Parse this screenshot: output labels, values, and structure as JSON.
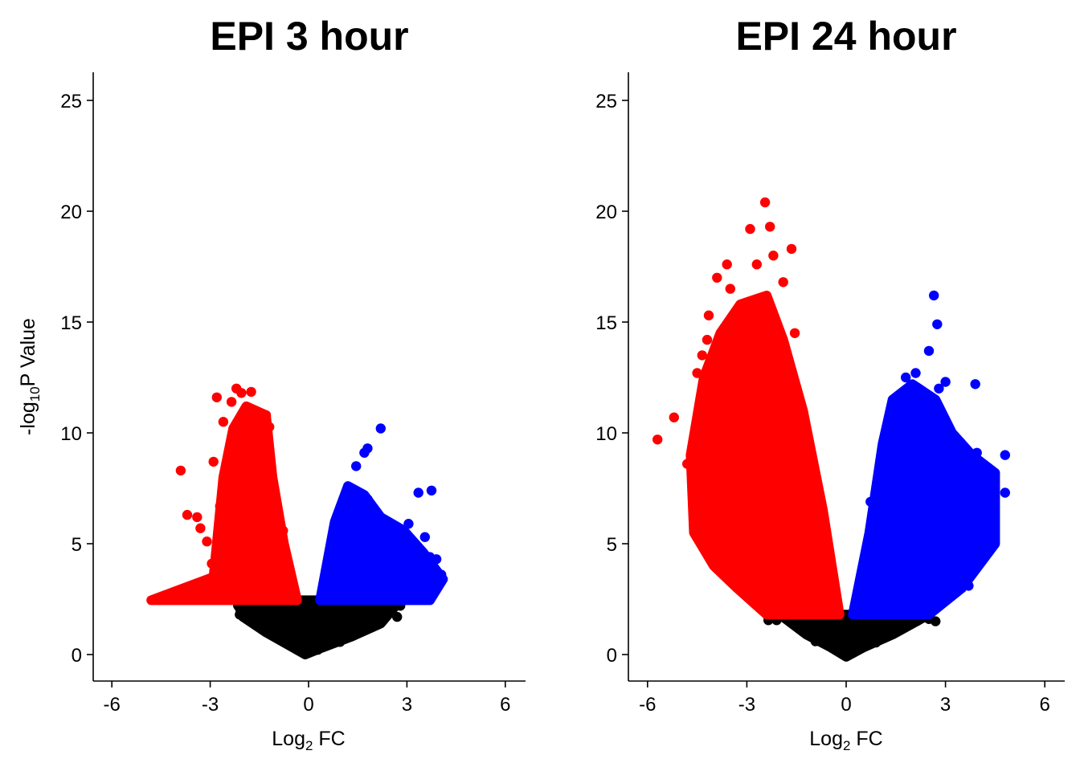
{
  "colors": {
    "down": "#ff0000",
    "up": "#0000ff",
    "nonsignificant": "#000000",
    "axis": "#000000",
    "background": "#ffffff"
  },
  "chart_data": [
    {
      "type": "scatter",
      "title": "EPI 3 hour",
      "xlabel": {
        "base": "Log",
        "sub": "2",
        "rest": " FC"
      },
      "ylabel": {
        "base": "-log",
        "sub": "10",
        "rest": "P Value"
      },
      "xlim": [
        -7,
        6.5
      ],
      "ylim": [
        -1.2,
        26.3
      ],
      "xticks": [
        -6,
        -3,
        0,
        3,
        6
      ],
      "xtick_labels": [
        "-6",
        "-3",
        "0",
        "3",
        "6"
      ],
      "yticks": [
        0,
        5,
        10,
        15,
        20,
        25
      ],
      "ytick_labels": [
        "0",
        "5",
        "10",
        "15",
        "20",
        "25"
      ],
      "grid": false,
      "legend": "none",
      "significance_threshold": 2.45,
      "series": [
        {
          "role": "down",
          "envelope": [
            [
              -4.8,
              2.45
            ],
            [
              -2.9,
              3.5
            ],
            [
              -2.6,
              8.0
            ],
            [
              -2.3,
              10.2
            ],
            [
              -1.9,
              11.2
            ],
            [
              -1.3,
              10.8
            ],
            [
              -1.1,
              8.0
            ],
            [
              -0.75,
              5.0
            ],
            [
              -0.35,
              2.45
            ]
          ],
          "outliers": [
            [
              -3.9,
              8.3
            ],
            [
              -2.9,
              8.7
            ],
            [
              -2.8,
              11.6
            ],
            [
              -2.6,
              10.5
            ],
            [
              -2.35,
              11.4
            ],
            [
              -2.2,
              12.0
            ],
            [
              -2.05,
              11.8
            ],
            [
              -1.75,
              11.85
            ],
            [
              -1.3,
              10.8
            ],
            [
              -3.7,
              6.3
            ],
            [
              -3.4,
              6.2
            ],
            [
              -3.3,
              5.7
            ],
            [
              -3.1,
              5.1
            ],
            [
              -2.7,
              6.7
            ],
            [
              -2.95,
              4.1
            ],
            [
              -2.75,
              3.6
            ]
          ]
        },
        {
          "role": "up",
          "envelope": [
            [
              0.35,
              2.45
            ],
            [
              0.8,
              6.0
            ],
            [
              1.2,
              7.6
            ],
            [
              1.7,
              7.2
            ],
            [
              2.2,
              6.2
            ],
            [
              2.9,
              5.6
            ],
            [
              3.5,
              4.6
            ],
            [
              4.1,
              3.4
            ],
            [
              3.7,
              2.45
            ]
          ],
          "outliers": [
            [
              1.45,
              8.5
            ],
            [
              1.7,
              9.1
            ],
            [
              1.8,
              9.3
            ],
            [
              2.2,
              10.2
            ],
            [
              3.35,
              7.3
            ],
            [
              3.75,
              7.4
            ],
            [
              3.05,
              5.9
            ],
            [
              3.55,
              5.3
            ],
            [
              3.7,
              4.4
            ],
            [
              3.9,
              4.3
            ],
            [
              4.05,
              3.6
            ],
            [
              3.2,
              4.2
            ],
            [
              3.8,
              2.8
            ],
            [
              2.75,
              5.2
            ]
          ]
        },
        {
          "role": "nonsignificant",
          "envelope": [
            [
              -2.2,
              2.45
            ],
            [
              -2.0,
              1.7
            ],
            [
              -1.3,
              1.0
            ],
            [
              -0.7,
              0.5
            ],
            [
              -0.1,
              0.0
            ],
            [
              0.4,
              0.3
            ],
            [
              1.3,
              0.8
            ],
            [
              2.2,
              1.4
            ],
            [
              2.8,
              2.45
            ]
          ],
          "outliers": [
            [
              -2.15,
              2.2
            ],
            [
              -2.1,
              1.8
            ],
            [
              2.7,
              1.7
            ],
            [
              2.8,
              2.2
            ]
          ]
        }
      ]
    },
    {
      "type": "scatter",
      "title": "EPI 24 hour",
      "xlabel": {
        "base": "Log",
        "sub": "2",
        "rest": " FC"
      },
      "ylabel": {
        "base": "",
        "sub": "",
        "rest": ""
      },
      "xlim": [
        -6.5,
        6.6
      ],
      "ylim": [
        -1.2,
        26.3
      ],
      "xticks": [
        -6,
        -3,
        0,
        3,
        6
      ],
      "xtick_labels": [
        "-6",
        "-3",
        "0",
        "3",
        "6"
      ],
      "yticks": [
        0,
        5,
        10,
        15,
        20,
        25
      ],
      "ytick_labels": [
        "0",
        "5",
        "10",
        "15",
        "20",
        "25"
      ],
      "grid": false,
      "legend": "none",
      "significance_threshold": 1.8,
      "series": [
        {
          "role": "down",
          "envelope": [
            [
              -4.6,
              5.5
            ],
            [
              -4.7,
              9.0
            ],
            [
              -4.3,
              12.5
            ],
            [
              -3.8,
              14.5
            ],
            [
              -3.2,
              15.8
            ],
            [
              -2.4,
              16.2
            ],
            [
              -1.9,
              14.2
            ],
            [
              -1.3,
              11.0
            ],
            [
              -0.7,
              6.5
            ],
            [
              -0.2,
              1.8
            ],
            [
              -2.4,
              1.8
            ],
            [
              -3.3,
              3.0
            ],
            [
              -4.0,
              4.0
            ]
          ],
          "outliers": [
            [
              -5.7,
              9.7
            ],
            [
              -5.2,
              10.7
            ],
            [
              -4.8,
              8.6
            ],
            [
              -4.6,
              8.7
            ],
            [
              -4.5,
              12.7
            ],
            [
              -4.2,
              12.8
            ],
            [
              -4.35,
              13.5
            ],
            [
              -4.2,
              14.2
            ],
            [
              -4.15,
              15.3
            ],
            [
              -3.9,
              17.0
            ],
            [
              -3.6,
              17.6
            ],
            [
              -3.5,
              16.5
            ],
            [
              -2.9,
              19.2
            ],
            [
              -2.7,
              17.6
            ],
            [
              -2.45,
              20.4
            ],
            [
              -2.3,
              19.3
            ],
            [
              -2.2,
              18.0
            ],
            [
              -1.65,
              18.3
            ],
            [
              -1.9,
              16.8
            ],
            [
              -1.55,
              14.5
            ],
            [
              -2.5,
              16.0
            ]
          ]
        },
        {
          "role": "up",
          "envelope": [
            [
              0.2,
              1.8
            ],
            [
              0.7,
              5.5
            ],
            [
              1.1,
              9.5
            ],
            [
              1.4,
              11.5
            ],
            [
              2.0,
              12.2
            ],
            [
              2.7,
              11.5
            ],
            [
              3.2,
              10.0
            ],
            [
              3.8,
              9.0
            ],
            [
              4.5,
              8.2
            ],
            [
              4.5,
              5.0
            ],
            [
              3.5,
              3.0
            ],
            [
              2.5,
              1.8
            ]
          ],
          "outliers": [
            [
              2.65,
              16.2
            ],
            [
              2.75,
              14.9
            ],
            [
              2.5,
              13.7
            ],
            [
              2.1,
              12.7
            ],
            [
              1.8,
              12.5
            ],
            [
              3.0,
              12.3
            ],
            [
              3.9,
              12.2
            ],
            [
              2.8,
              12.0
            ],
            [
              4.8,
              9.0
            ],
            [
              4.8,
              7.3
            ],
            [
              3.95,
              9.1
            ],
            [
              4.3,
              6.5
            ],
            [
              3.9,
              4.4
            ],
            [
              3.2,
              3.0
            ],
            [
              3.7,
              3.1
            ],
            [
              2.7,
              2.8
            ]
          ]
        },
        {
          "role": "nonsignificant",
          "envelope": [
            [
              -2.0,
              1.8
            ],
            [
              -1.2,
              0.9
            ],
            [
              -0.5,
              0.35
            ],
            [
              0.0,
              -0.1
            ],
            [
              0.5,
              0.3
            ],
            [
              1.4,
              0.9
            ],
            [
              2.5,
              1.8
            ]
          ],
          "outliers": [
            [
              -2.35,
              1.55
            ],
            [
              -2.1,
              1.55
            ],
            [
              2.7,
              1.5
            ],
            [
              2.5,
              1.6
            ]
          ]
        }
      ]
    }
  ]
}
